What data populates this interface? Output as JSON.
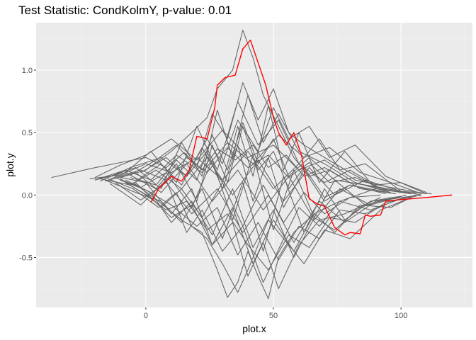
{
  "chart_data": {
    "type": "line",
    "title": "Test Statistic: CondKolmY, p-value: 0.01",
    "xlabel": "plot.x",
    "ylabel": "plot.y",
    "xlim": [
      -43,
      128
    ],
    "ylim": [
      -0.9,
      1.38
    ],
    "x_ticks": [
      0,
      50,
      100
    ],
    "x_tick_labels": [
      "0",
      "50",
      "100"
    ],
    "y_ticks": [
      -0.5,
      0.0,
      0.5,
      1.0
    ],
    "y_tick_labels": [
      "-0.5",
      "0.0",
      "0.5",
      "1.0"
    ],
    "grid": true,
    "legend": "none",
    "colors": {
      "panel": "#ebebeb",
      "grid_major": "#ffffff",
      "grid_minor": "#f2f2f2",
      "permutation_lines": "#666666",
      "observed_line": "#ff0000",
      "tick_label": "#4d4d4d"
    },
    "series": [
      {
        "role": "observed",
        "color": "#ff0000",
        "x": [
          2,
          5,
          10,
          14,
          17,
          20,
          24,
          27,
          28,
          31,
          35,
          38,
          41,
          47,
          50,
          52,
          55,
          58,
          61,
          64,
          67,
          70,
          74,
          78,
          80,
          84,
          86,
          88,
          92,
          94,
          98,
          110,
          120
        ],
        "y": [
          -0.06,
          0.05,
          0.15,
          0.11,
          0.2,
          0.47,
          0.45,
          0.7,
          0.88,
          0.94,
          0.96,
          1.17,
          1.24,
          0.88,
          0.62,
          0.5,
          0.4,
          0.5,
          0.32,
          -0.03,
          -0.07,
          -0.09,
          -0.26,
          -0.32,
          -0.3,
          -0.31,
          -0.16,
          -0.17,
          -0.16,
          -0.05,
          -0.04,
          -0.02,
          0.0
        ]
      },
      {
        "role": "permutation",
        "color": "#666666",
        "x": [
          -37,
          -22,
          -10,
          0,
          8,
          15,
          22,
          28,
          35,
          42,
          48,
          55,
          62,
          70,
          80,
          92,
          108
        ],
        "y": [
          0.14,
          0.21,
          0.26,
          0.3,
          0.22,
          0.34,
          0.2,
          0.37,
          0.28,
          0.4,
          0.22,
          0.32,
          0.15,
          0.22,
          0.1,
          0.06,
          0.0
        ]
      },
      {
        "role": "permutation",
        "color": "#666666",
        "x": [
          -20,
          -8,
          4,
          12,
          20,
          26,
          32,
          38,
          44,
          50,
          56,
          62,
          70,
          80,
          95
        ],
        "y": [
          0.12,
          0.18,
          0.05,
          0.25,
          -0.05,
          0.4,
          0.1,
          0.55,
          0.2,
          0.35,
          0.05,
          0.22,
          -0.02,
          0.08,
          0.02
        ]
      },
      {
        "role": "permutation",
        "color": "#666666",
        "x": [
          -15,
          -5,
          5,
          12,
          18,
          24,
          30,
          36,
          40,
          44,
          48,
          54,
          60,
          68,
          76,
          88,
          100
        ],
        "y": [
          0.13,
          0.05,
          -0.1,
          0.02,
          -0.25,
          -0.35,
          -0.55,
          -0.78,
          -0.6,
          -0.4,
          -0.2,
          -0.35,
          -0.1,
          -0.25,
          -0.05,
          -0.12,
          -0.03
        ]
      },
      {
        "role": "permutation",
        "color": "#666666",
        "x": [
          -10,
          0,
          10,
          18,
          24,
          28,
          34,
          38,
          42,
          46,
          52,
          58,
          64,
          72,
          84,
          98
        ],
        "y": [
          0.14,
          0.2,
          0.35,
          0.5,
          0.62,
          0.85,
          1.0,
          1.32,
          1.1,
          0.8,
          0.55,
          0.3,
          0.15,
          0.2,
          0.05,
          0.01
        ]
      },
      {
        "role": "permutation",
        "color": "#666666",
        "x": [
          -5,
          5,
          14,
          22,
          28,
          32,
          36,
          40,
          44,
          48,
          52,
          58,
          66,
          76,
          90,
          104
        ],
        "y": [
          0.1,
          -0.05,
          -0.2,
          -0.3,
          -0.6,
          -0.82,
          -0.7,
          -0.45,
          -0.65,
          -0.83,
          -0.5,
          -0.3,
          -0.15,
          -0.05,
          0.05,
          0.01
        ]
      },
      {
        "role": "permutation",
        "color": "#666666",
        "x": [
          -18,
          -6,
          6,
          16,
          24,
          30,
          36,
          44,
          50,
          56,
          64,
          72,
          82,
          94,
          110
        ],
        "y": [
          0.11,
          0.22,
          0.3,
          0.15,
          0.45,
          0.25,
          0.6,
          0.35,
          0.7,
          0.45,
          0.55,
          0.3,
          0.4,
          0.15,
          0.01
        ]
      },
      {
        "role": "permutation",
        "color": "#666666",
        "x": [
          -12,
          0,
          10,
          18,
          26,
          34,
          42,
          50,
          58,
          66,
          74,
          84,
          96,
          106
        ],
        "y": [
          0.15,
          0.1,
          -0.15,
          0.05,
          -0.4,
          -0.1,
          -0.55,
          -0.2,
          -0.45,
          -0.15,
          -0.3,
          -0.08,
          -0.1,
          0.0
        ]
      },
      {
        "role": "permutation",
        "color": "#666666",
        "x": [
          -8,
          2,
          12,
          20,
          28,
          36,
          44,
          52,
          60,
          68,
          76,
          86,
          100
        ],
        "y": [
          0.18,
          0.35,
          0.1,
          0.55,
          0.2,
          0.75,
          0.4,
          0.6,
          0.25,
          0.45,
          0.2,
          0.25,
          0.03
        ]
      },
      {
        "role": "permutation",
        "color": "#666666",
        "x": [
          -14,
          -2,
          8,
          16,
          22,
          30,
          38,
          46,
          54,
          62,
          70,
          80,
          92,
          104
        ],
        "y": [
          0.09,
          -0.08,
          0.12,
          -0.3,
          -0.12,
          -0.45,
          -0.25,
          -0.7,
          -0.35,
          -0.55,
          -0.28,
          -0.35,
          -0.12,
          -0.02
        ]
      },
      {
        "role": "permutation",
        "color": "#666666",
        "x": [
          -22,
          -10,
          0,
          10,
          20,
          30,
          40,
          50,
          60,
          70,
          80,
          90,
          100,
          110
        ],
        "y": [
          0.13,
          0.16,
          0.25,
          0.18,
          0.3,
          0.12,
          0.35,
          0.05,
          0.25,
          0.1,
          0.2,
          0.08,
          0.1,
          0.02
        ]
      },
      {
        "role": "permutation",
        "color": "#666666",
        "x": [
          -16,
          -4,
          6,
          14,
          22,
          30,
          38,
          46,
          54,
          62,
          70,
          78,
          88,
          100
        ],
        "y": [
          0.12,
          0.02,
          -0.05,
          -0.22,
          0.05,
          -0.35,
          0.1,
          -0.45,
          0.15,
          -0.3,
          0.05,
          -0.2,
          -0.05,
          -0.01
        ]
      },
      {
        "role": "permutation",
        "color": "#666666",
        "x": [
          -6,
          4,
          12,
          20,
          26,
          32,
          38,
          44,
          50,
          56,
          62,
          70,
          80,
          92
        ],
        "y": [
          0.16,
          0.28,
          0.4,
          0.22,
          0.65,
          0.45,
          0.9,
          0.6,
          0.85,
          0.5,
          0.4,
          0.3,
          0.18,
          0.05
        ]
      },
      {
        "role": "permutation",
        "color": "#666666",
        "x": [
          -10,
          0,
          8,
          16,
          24,
          32,
          40,
          48,
          56,
          64,
          72,
          82,
          94,
          106
        ],
        "y": [
          0.13,
          0.0,
          -0.12,
          -0.05,
          -0.28,
          -0.15,
          -0.4,
          -0.6,
          -0.32,
          -0.42,
          -0.18,
          -0.22,
          -0.06,
          0.0
        ]
      },
      {
        "role": "permutation",
        "color": "#666666",
        "x": [
          -20,
          -8,
          2,
          12,
          22,
          32,
          42,
          52,
          62,
          72,
          84,
          96,
          108
        ],
        "y": [
          0.12,
          0.2,
          0.12,
          0.32,
          0.18,
          0.42,
          0.25,
          0.48,
          0.3,
          0.38,
          0.18,
          0.1,
          0.01
        ]
      },
      {
        "role": "permutation",
        "color": "#666666",
        "x": [
          -12,
          -2,
          8,
          18,
          26,
          34,
          42,
          50,
          58,
          66,
          74,
          86,
          98
        ],
        "y": [
          0.14,
          0.06,
          0.18,
          -0.1,
          0.28,
          -0.2,
          0.32,
          -0.28,
          0.2,
          -0.18,
          0.12,
          -0.08,
          -0.02
        ]
      },
      {
        "role": "permutation",
        "color": "#666666",
        "x": [
          -4,
          6,
          14,
          22,
          30,
          36,
          42,
          48,
          54,
          60,
          68,
          78,
          90,
          102
        ],
        "y": [
          0.11,
          0.25,
          0.08,
          0.38,
          0.1,
          0.55,
          0.15,
          0.72,
          0.2,
          0.5,
          0.1,
          0.35,
          0.05,
          0.02
        ]
      },
      {
        "role": "permutation",
        "color": "#666666",
        "x": [
          -8,
          2,
          10,
          18,
          26,
          34,
          40,
          46,
          52,
          60,
          68,
          78,
          92
        ],
        "y": [
          0.1,
          -0.02,
          -0.18,
          -0.08,
          -0.4,
          -0.22,
          -0.65,
          -0.38,
          -0.75,
          -0.4,
          -0.2,
          -0.15,
          -0.02
        ]
      },
      {
        "role": "permutation",
        "color": "#666666",
        "x": [
          -18,
          -6,
          4,
          14,
          24,
          34,
          44,
          54,
          64,
          74,
          86,
          100,
          112
        ],
        "y": [
          0.13,
          0.08,
          0.2,
          0.05,
          0.3,
          0.0,
          0.28,
          -0.05,
          0.22,
          0.0,
          0.12,
          0.03,
          0.01
        ]
      },
      {
        "role": "permutation",
        "color": "#666666",
        "x": [
          -14,
          -4,
          6,
          14,
          22,
          28,
          34,
          40,
          46,
          52,
          60,
          70,
          82,
          96
        ],
        "y": [
          0.15,
          0.22,
          0.05,
          0.42,
          0.15,
          0.68,
          0.3,
          0.8,
          0.42,
          0.65,
          0.35,
          0.25,
          0.1,
          0.02
        ]
      },
      {
        "role": "permutation",
        "color": "#666666",
        "x": [
          -10,
          0,
          10,
          20,
          28,
          36,
          44,
          52,
          60,
          68,
          76,
          86,
          98,
          108
        ],
        "y": [
          0.12,
          0.04,
          -0.08,
          -0.25,
          -0.1,
          -0.48,
          -0.22,
          -0.52,
          -0.25,
          -0.35,
          -0.12,
          -0.15,
          -0.04,
          0.0
        ]
      },
      {
        "role": "permutation",
        "color": "#666666",
        "x": [
          -2,
          8,
          16,
          24,
          30,
          36,
          42,
          48,
          54,
          62,
          70,
          80,
          94
        ],
        "y": [
          0.18,
          0.3,
          0.15,
          0.35,
          0.05,
          0.4,
          -0.05,
          0.3,
          -0.1,
          0.2,
          -0.05,
          0.08,
          0.01
        ]
      },
      {
        "role": "permutation",
        "color": "#666666",
        "x": [
          -16,
          -4,
          6,
          16,
          26,
          36,
          46,
          56,
          66,
          76,
          88,
          102
        ],
        "y": [
          0.11,
          0.18,
          0.02,
          0.25,
          -0.05,
          0.2,
          -0.12,
          0.15,
          -0.2,
          0.05,
          -0.08,
          0.0
        ]
      },
      {
        "role": "permutation",
        "color": "#666666",
        "x": [
          -6,
          4,
          12,
          20,
          26,
          32,
          38,
          44,
          50,
          56,
          64,
          74,
          86,
          100
        ],
        "y": [
          0.14,
          0.08,
          0.28,
          0.12,
          0.48,
          0.2,
          0.58,
          0.25,
          0.45,
          0.15,
          0.3,
          0.12,
          0.08,
          0.02
        ]
      },
      {
        "role": "permutation",
        "color": "#666666",
        "x": [
          -12,
          -2,
          8,
          18,
          28,
          38,
          48,
          58,
          68,
          78,
          90,
          104
        ],
        "y": [
          0.1,
          -0.04,
          0.1,
          -0.15,
          0.05,
          -0.3,
          0.0,
          -0.38,
          -0.05,
          -0.22,
          -0.05,
          -0.01
        ]
      },
      {
        "role": "permutation",
        "color": "#666666",
        "x": [
          -20,
          -10,
          0,
          10,
          20,
          30,
          40,
          50,
          60,
          70,
          82,
          96,
          110
        ],
        "y": [
          0.14,
          0.24,
          0.32,
          0.45,
          0.28,
          0.52,
          0.3,
          0.4,
          0.2,
          0.28,
          0.12,
          0.06,
          0.01
        ]
      },
      {
        "role": "permutation",
        "color": "#666666",
        "x": [
          -8,
          2,
          10,
          18,
          26,
          34,
          42,
          50,
          58,
          66,
          74,
          84,
          96
        ],
        "y": [
          0.12,
          0.02,
          -0.22,
          -0.05,
          -0.32,
          0.05,
          -0.42,
          -0.12,
          -0.5,
          -0.18,
          -0.28,
          -0.1,
          -0.02
        ]
      },
      {
        "role": "permutation",
        "color": "#666666",
        "x": [
          -14,
          -2,
          8,
          16,
          24,
          32,
          40,
          48,
          56,
          64,
          72,
          82,
          94,
          106
        ],
        "y": [
          0.13,
          0.2,
          0.12,
          0.3,
          0.18,
          0.38,
          0.22,
          0.32,
          0.14,
          0.26,
          0.1,
          0.14,
          0.04,
          0.01
        ]
      },
      {
        "role": "permutation",
        "color": "#666666",
        "x": [
          -4,
          6,
          14,
          22,
          30,
          38,
          46,
          54,
          62,
          70,
          80,
          92
        ],
        "y": [
          0.1,
          -0.1,
          0.05,
          -0.18,
          0.1,
          -0.25,
          0.08,
          -0.22,
          0.02,
          -0.15,
          -0.02,
          0.0
        ]
      }
    ]
  }
}
